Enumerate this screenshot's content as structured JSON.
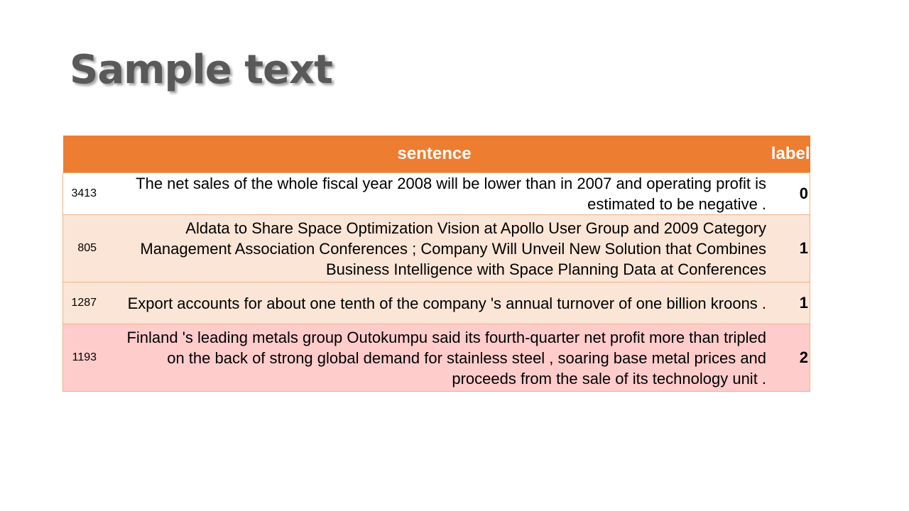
{
  "slide": {
    "title": "Sample text"
  },
  "table": {
    "columns": [
      "",
      "sentence",
      "label"
    ],
    "rows": [
      {
        "index": "3413",
        "sentence": "The net sales of the whole fiscal year 2008 will be lower than in 2007 and operating profit is estimated to be negative .",
        "label": "0",
        "bg": "#ffffff"
      },
      {
        "index": "805",
        "sentence": "Aldata to Share Space Optimization Vision at Apollo User Group and 2009 Category Management Association Conferences ; Company Will Unveil New Solution that Combines Business Intelligence with Space Planning Data at Conferences",
        "label": "1",
        "bg": "#FBE5D6"
      },
      {
        "index": "1287",
        "sentence": "Export accounts for about one tenth of the company 's annual turnover of one billion kroons .",
        "label": "1",
        "bg": "#FBE5D6"
      },
      {
        "index": "1193",
        "sentence": "Finland 's leading metals group Outokumpu said its fourth-quarter net profit more than tripled on the back of strong global demand for stainless steel , soaring base metal prices and proceeds from the sale of its technology unit .",
        "label": "2",
        "bg": "#FFCCCC"
      }
    ]
  },
  "colors": {
    "header": "#ED7D31",
    "title": "#595959"
  }
}
